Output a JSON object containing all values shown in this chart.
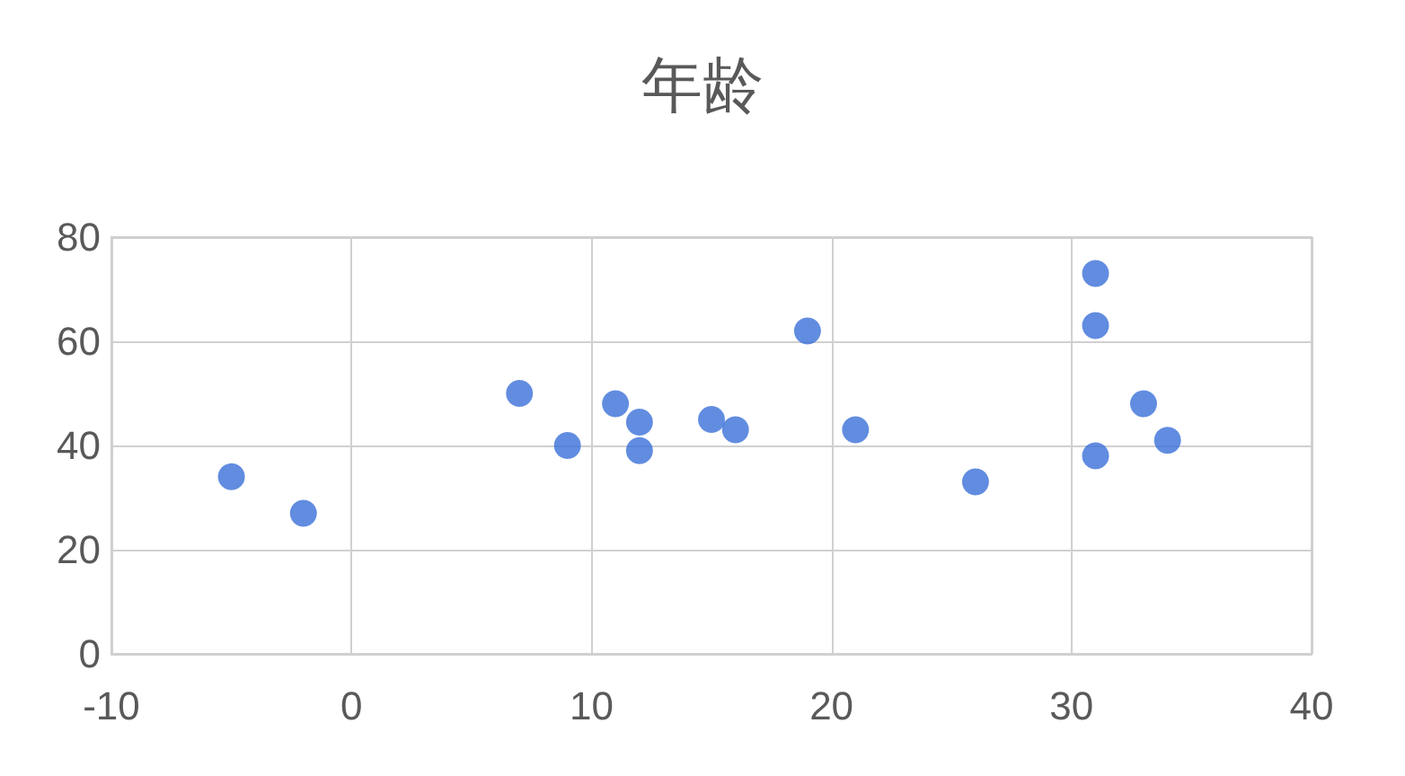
{
  "chart_data": {
    "type": "scatter",
    "title": "年龄",
    "x": [
      -5,
      -2,
      7,
      9,
      11,
      12,
      12,
      15,
      16,
      19,
      21,
      26,
      31,
      31,
      31,
      33,
      34
    ],
    "values": [
      34,
      27,
      50,
      40,
      48,
      44.5,
      39,
      45,
      43,
      62,
      43,
      33,
      73,
      63,
      38,
      48,
      41
    ],
    "color": "#3a6fd8",
    "xlim": [
      -10,
      40
    ],
    "xticks": [
      -10,
      0,
      10,
      20,
      30,
      40
    ],
    "ylim": [
      0,
      80
    ],
    "yticks": [
      0,
      20,
      40,
      60,
      80
    ],
    "grid": true,
    "marker": "circle"
  }
}
